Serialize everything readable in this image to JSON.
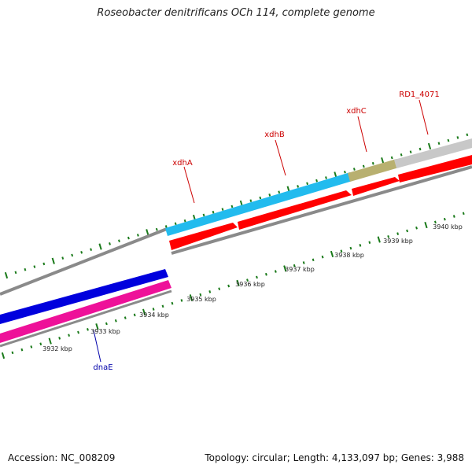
{
  "title": "Roseobacter denitrificans OCh 114, complete genome",
  "footer": {
    "accession": "Accession: NC_008209",
    "summary": "Topology: circular; Length: 4,133,097 bp; Genes: 3,988"
  },
  "scale": {
    "ticks": [
      "3932 kbp",
      "3933 kbp",
      "3934 kbp",
      "3935 kbp",
      "3936 kbp",
      "3937 kbp",
      "3938 kbp",
      "3939 kbp",
      "3940 kbp"
    ]
  },
  "genes": {
    "dnaE": {
      "label": "dnaE",
      "color": "#0000aa"
    },
    "xdhA": {
      "label": "xdhA",
      "color": "#cc0000"
    },
    "xdhB": {
      "label": "xdhB",
      "color": "#cc0000"
    },
    "xdhC": {
      "label": "xdhC",
      "color": "#cc0000"
    },
    "rd1": {
      "label": "RD1_4071",
      "color": "#cc0000"
    }
  },
  "colors": {
    "cds_red": "#ff0000",
    "feature_cyan": "#22bbee",
    "feature_olive": "#b8b070",
    "feature_gray": "#c8c8c8",
    "feature_blue": "#0000dd",
    "feature_pink": "#ee1199",
    "backbone": "#8a8a8a",
    "tick_green": "#1a7a1a"
  }
}
